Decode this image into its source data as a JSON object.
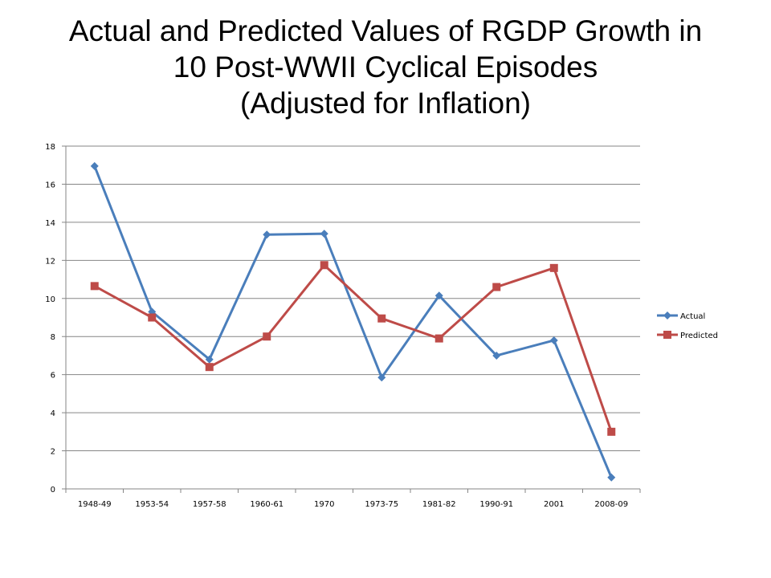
{
  "chart_data": {
    "type": "line",
    "title": [
      "Actual and Predicted Values of RGDP Growth in",
      "10 Post-WWII Cyclical Episodes",
      "(Adjusted for Inflation)"
    ],
    "xlabel": "",
    "ylabel": "",
    "categories": [
      "1948-49",
      "1953-54",
      "1957-58",
      "1960-61",
      "1970",
      "1973-75",
      "1981-82",
      "1990-91",
      "2001",
      "2008-09"
    ],
    "ylim": [
      0,
      18
    ],
    "yticks": [
      0,
      2,
      4,
      6,
      8,
      10,
      12,
      14,
      16,
      18
    ],
    "grid": true,
    "legend_position": "right",
    "series": [
      {
        "name": "Actual",
        "color": "#4a7ebb",
        "marker": "diamond",
        "values": [
          16.95,
          9.3,
          6.8,
          13.35,
          13.4,
          5.85,
          10.15,
          7.0,
          7.8,
          0.6
        ]
      },
      {
        "name": "Predicted",
        "color": "#be4b48",
        "marker": "square",
        "values": [
          10.65,
          9.0,
          6.4,
          8.0,
          11.75,
          8.95,
          7.9,
          10.6,
          11.6,
          3.0
        ]
      }
    ]
  }
}
